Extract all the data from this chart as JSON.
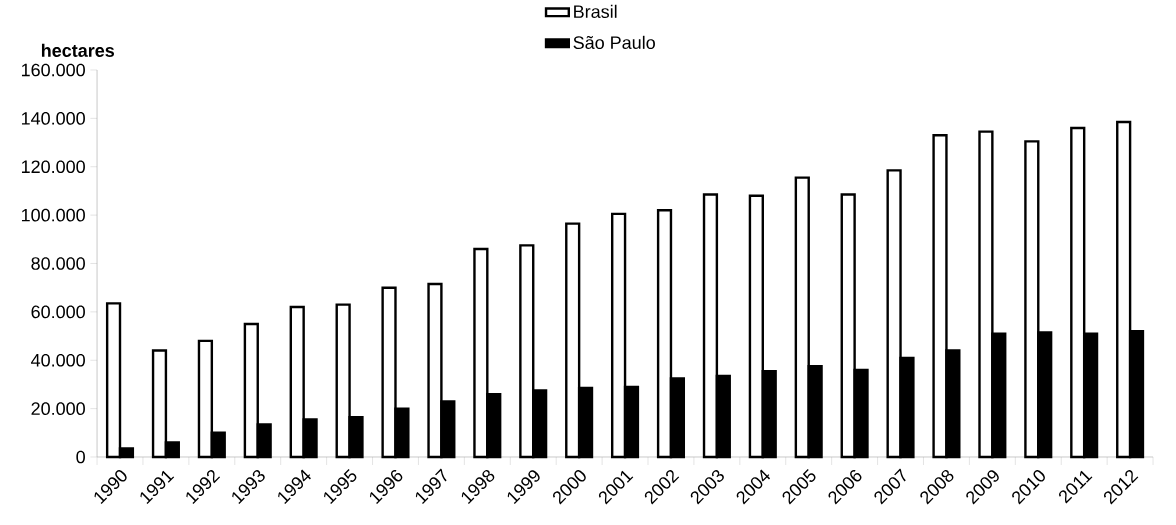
{
  "chart_data": {
    "type": "bar",
    "ylabel": "hectares",
    "categories": [
      "1990",
      "1991",
      "1992",
      "1993",
      "1994",
      "1995",
      "1996",
      "1997",
      "1998",
      "1999",
      "2000",
      "2001",
      "2002",
      "2003",
      "2004",
      "2005",
      "2006",
      "2007",
      "2008",
      "2009",
      "2010",
      "2011",
      "2012"
    ],
    "series": [
      {
        "name": "Brasil",
        "color": "#ffffff",
        "values": [
          63500,
          44000,
          48000,
          55000,
          62000,
          63000,
          70000,
          71500,
          86000,
          87500,
          96500,
          100500,
          102000,
          108500,
          108000,
          115500,
          108500,
          118500,
          133000,
          134500,
          130500,
          136000,
          138500
        ]
      },
      {
        "name": "São Paulo",
        "color": "#000000",
        "values": [
          3500,
          6000,
          10000,
          13500,
          15500,
          16500,
          20000,
          23000,
          26000,
          27500,
          28500,
          29000,
          32500,
          33500,
          35500,
          37500,
          36000,
          41000,
          44000,
          51000,
          51500,
          51000,
          52000
        ]
      }
    ],
    "ylim": [
      0,
      160000
    ],
    "yticks": [
      0,
      {
        "value": 20000,
        "label": "20.000"
      },
      {
        "value": 40000,
        "label": "40.000"
      },
      {
        "value": 60000,
        "label": "60.000"
      },
      {
        "value": 80000,
        "label": "80.000"
      },
      {
        "value": 100000,
        "label": "100.000"
      },
      {
        "value": 120000,
        "label": "120.000"
      },
      {
        "value": 140000,
        "label": "140.000"
      },
      {
        "value": 160000,
        "label": "160.000"
      }
    ],
    "legend": "top",
    "grid": false
  }
}
